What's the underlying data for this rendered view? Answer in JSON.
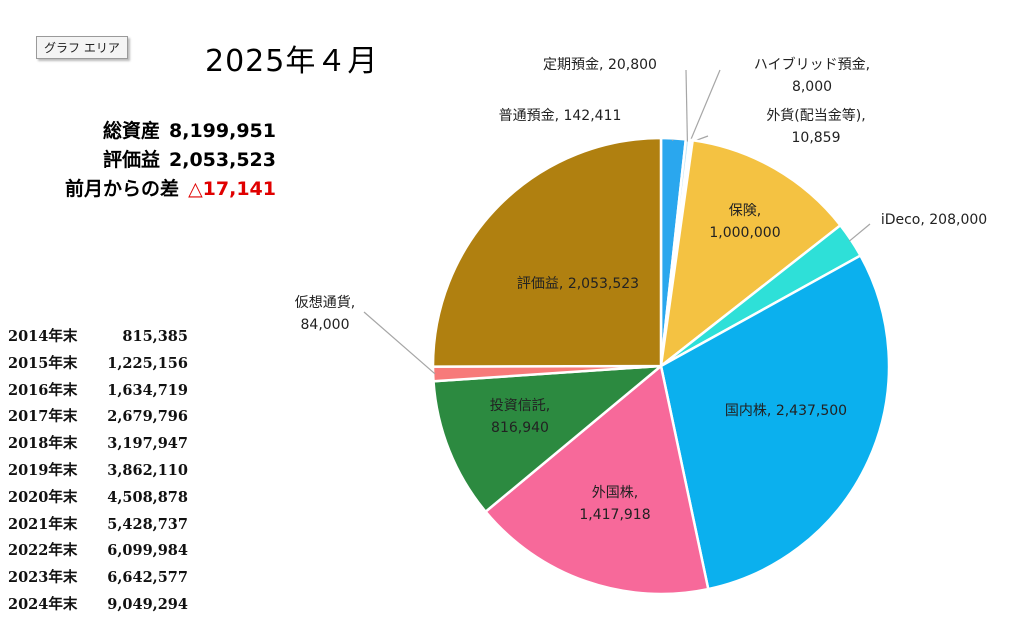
{
  "chart_area_tag": "グラフ エリア",
  "title": "2025年４月",
  "summary": {
    "total_label": "総資産",
    "total_value": "8,199,951",
    "gain_label": "評価益",
    "gain_value": "2,053,523",
    "diff_label": "前月からの差",
    "diff_value": "△17,141"
  },
  "history": [
    {
      "year": "2014年末",
      "value": "815,385"
    },
    {
      "year": "2015年末",
      "value": "1,225,156"
    },
    {
      "year": "2016年末",
      "value": "1,634,719"
    },
    {
      "year": "2017年末",
      "value": "2,679,796"
    },
    {
      "year": "2018年末",
      "value": "3,197,947"
    },
    {
      "year": "2019年末",
      "value": "3,862,110"
    },
    {
      "year": "2020年末",
      "value": "4,508,878"
    },
    {
      "year": "2021年末",
      "value": "5,428,737"
    },
    {
      "year": "2022年末",
      "value": "6,099,984"
    },
    {
      "year": "2023年末",
      "value": "6,642,577"
    },
    {
      "year": "2024年末",
      "value": "9,049,294"
    }
  ],
  "chart_data": {
    "type": "pie",
    "start": "top",
    "direction": "clockwise",
    "slices": [
      {
        "name": "普通預金",
        "value": 142411,
        "value_text": "142,411",
        "color": "#2aa7ee"
      },
      {
        "name": "定期預金",
        "value": 20800,
        "value_text": "20,800",
        "color": "#bfe3f7"
      },
      {
        "name": "ハイブリッド預金",
        "value": 8000,
        "value_text": "8,000",
        "color": "#f2e3a4"
      },
      {
        "name": "外貨(配当金等)",
        "value": 10859,
        "value_text": "10,859",
        "color": "#d9b84a"
      },
      {
        "name": "保険",
        "value": 1000000,
        "value_text": "1,000,000",
        "color": "#f4c242"
      },
      {
        "name": "iDeco",
        "value": 208000,
        "value_text": "208,000",
        "color": "#2ee0d8"
      },
      {
        "name": "国内株",
        "value": 2437500,
        "value_text": "2,437,500",
        "color": "#0bb0ee"
      },
      {
        "name": "外国株",
        "value": 1417918,
        "value_text": "1,417,918",
        "color": "#f7699a"
      },
      {
        "name": "投資信託",
        "value": 816940,
        "value_text": "816,940",
        "color": "#2c8a40"
      },
      {
        "name": "仮想通貨",
        "value": 84000,
        "value_text": "84,000",
        "color": "#f77a7a"
      },
      {
        "name": "評価益",
        "value": 2053523,
        "value_text": "2,053,523",
        "color": "#b08010"
      }
    ]
  }
}
